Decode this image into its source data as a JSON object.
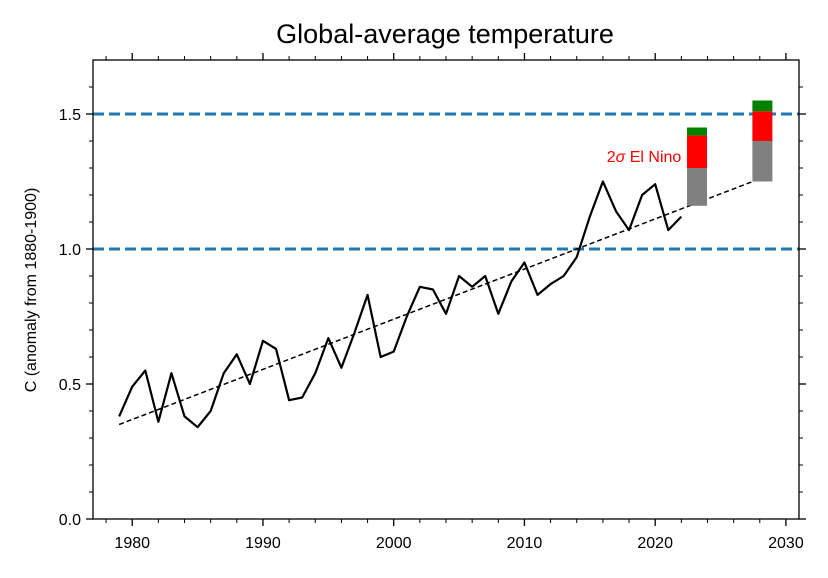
{
  "chart_data": {
    "type": "line",
    "title": "Global-average temperature",
    "xlabel": "",
    "ylabel": "C (anomaly from 1880-1900)",
    "xlim": [
      1977,
      2031
    ],
    "ylim": [
      0.0,
      1.7
    ],
    "x_ticks": [
      1980,
      1990,
      2000,
      2010,
      2020,
      2030
    ],
    "y_ticks": [
      0.0,
      0.5,
      1.0,
      1.5
    ],
    "x_tick_labels": [
      "1980",
      "1990",
      "2000",
      "2010",
      "2020",
      "2030"
    ],
    "y_tick_labels": [
      "0.0",
      "0.5",
      "1.0",
      "1.5"
    ],
    "grid": false,
    "series": [
      {
        "style": "solid",
        "color": "#000000",
        "x": [
          1979,
          1980,
          1981,
          1982,
          1983,
          1984,
          1985,
          1986,
          1987,
          1988,
          1989,
          1990,
          1991,
          1992,
          1993,
          1994,
          1995,
          1996,
          1997,
          1998,
          1999,
          2000,
          2001,
          2002,
          2003,
          2004,
          2005,
          2006,
          2007,
          2008,
          2009,
          2010,
          2011,
          2012,
          2013,
          2014,
          2015,
          2016,
          2017,
          2018,
          2019,
          2020,
          2021,
          2022
        ],
        "y": [
          0.38,
          0.49,
          0.55,
          0.36,
          0.54,
          0.38,
          0.34,
          0.4,
          0.54,
          0.61,
          0.5,
          0.66,
          0.63,
          0.44,
          0.45,
          0.54,
          0.67,
          0.56,
          0.69,
          0.83,
          0.6,
          0.62,
          0.75,
          0.86,
          0.85,
          0.76,
          0.9,
          0.86,
          0.9,
          0.76,
          0.88,
          0.95,
          0.83,
          0.87,
          0.9,
          0.97,
          1.12,
          1.25,
          1.14,
          1.07,
          1.2,
          1.24,
          1.07,
          1.12
        ]
      },
      {
        "style": "dashed",
        "color": "#000000",
        "x": [
          1979,
          2028
        ],
        "y": [
          0.35,
          1.26
        ]
      }
    ],
    "reference_lines": [
      {
        "y": 1.5,
        "color": "#1f77b4",
        "style": "dashed"
      },
      {
        "y": 1.0,
        "color": "#1f77b4",
        "style": "dashed"
      }
    ],
    "stacked_bars": [
      {
        "x": 2023.2,
        "segments": [
          {
            "from": 1.16,
            "to": 1.3,
            "color": "#808080"
          },
          {
            "from": 1.3,
            "to": 1.42,
            "color": "#ff0000"
          },
          {
            "from": 1.42,
            "to": 1.45,
            "color": "#008000"
          }
        ]
      },
      {
        "x": 2028.2,
        "segments": [
          {
            "from": 1.25,
            "to": 1.4,
            "color": "#808080"
          },
          {
            "from": 1.4,
            "to": 1.51,
            "color": "#ff0000"
          },
          {
            "from": 1.51,
            "to": 1.55,
            "color": "#008000"
          }
        ]
      }
    ],
    "annotations": [
      {
        "text_prefix": "2",
        "symbol": "σ",
        "text_suffix": " El Nino",
        "x": 2022.0,
        "y": 1.34,
        "color": "#ff0000"
      }
    ]
  }
}
